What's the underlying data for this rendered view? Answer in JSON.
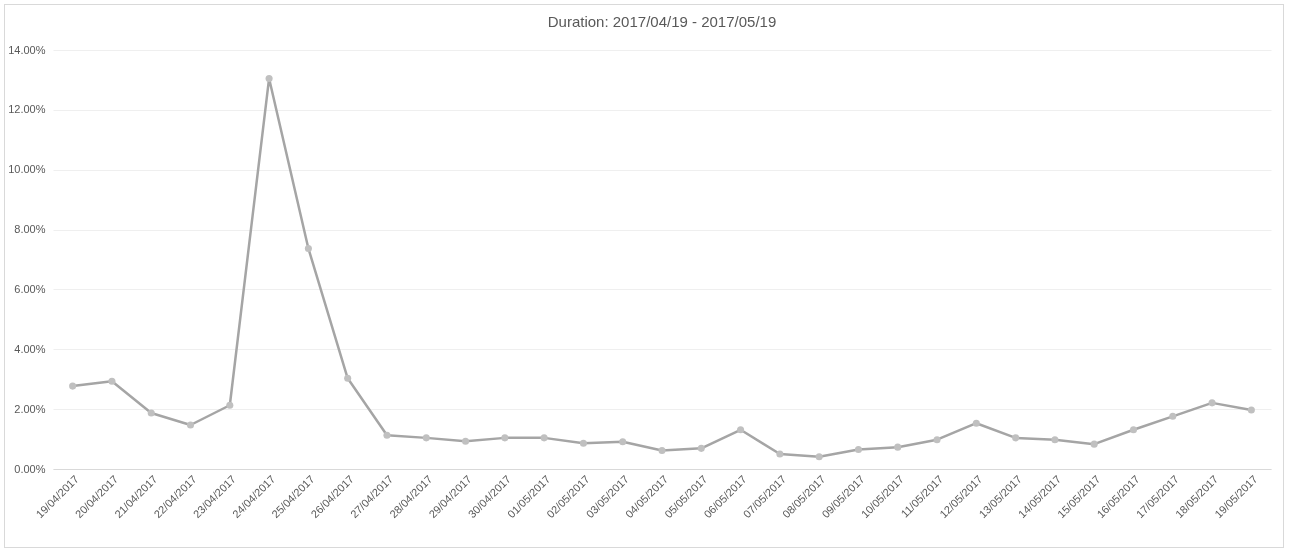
{
  "chart_data": {
    "type": "line",
    "title": "Duration: 2017/04/19 - 2017/05/19",
    "categories": [
      "19/04/2017",
      "20/04/2017",
      "21/04/2017",
      "22/04/2017",
      "23/04/2017",
      "24/04/2017",
      "25/04/2017",
      "26/04/2017",
      "27/04/2017",
      "28/04/2017",
      "29/04/2017",
      "30/04/2017",
      "01/05/2017",
      "02/05/2017",
      "03/05/2017",
      "04/05/2017",
      "05/05/2017",
      "06/05/2017",
      "07/05/2017",
      "08/05/2017",
      "09/05/2017",
      "10/05/2017",
      "11/05/2017",
      "12/05/2017",
      "13/05/2017",
      "14/05/2017",
      "15/05/2017",
      "16/05/2017",
      "17/05/2017",
      "18/05/2017",
      "19/05/2017"
    ],
    "series": [
      {
        "color": "#a5a5a5",
        "values": [
          2.77,
          2.93,
          1.87,
          1.47,
          2.13,
          13.05,
          7.37,
          3.03,
          1.13,
          1.04,
          0.93,
          1.04,
          1.04,
          0.86,
          0.91,
          0.62,
          0.69,
          1.31,
          0.5,
          0.41,
          0.65,
          0.73,
          0.98,
          1.53,
          1.04,
          0.98,
          0.83,
          1.31,
          1.76,
          2.21,
          1.97
        ]
      }
    ],
    "ylim": [
      0,
      14
    ],
    "yticks": [
      {
        "value": 0,
        "label": "0.00%"
      },
      {
        "value": 2,
        "label": "2.00%"
      },
      {
        "value": 4,
        "label": "4.00%"
      },
      {
        "value": 6,
        "label": "6.00%"
      },
      {
        "value": 8,
        "label": "8.00%"
      },
      {
        "value": 10,
        "label": "10.00%"
      },
      {
        "value": 12,
        "label": "12.00%"
      },
      {
        "value": 14,
        "label": "14.00%"
      }
    ],
    "grid": "y",
    "legend": false,
    "marker": "circle",
    "line_style": "solid"
  }
}
